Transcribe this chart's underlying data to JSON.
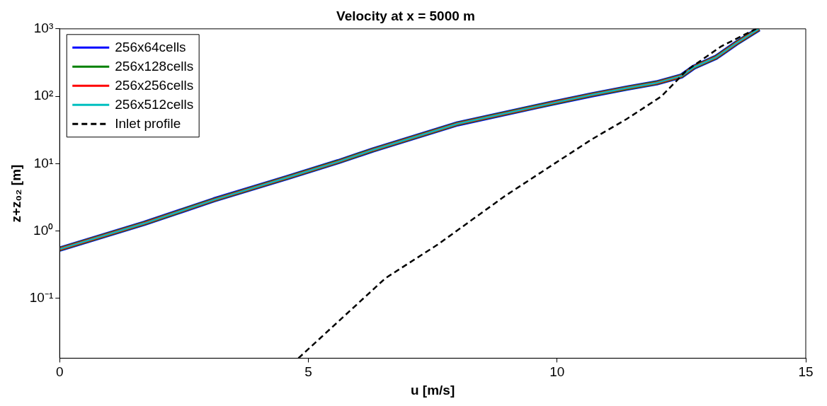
{
  "chart_data": {
    "type": "line",
    "title": "Velocity at x = 5000 m",
    "xlabel": "u [m/s]",
    "ylabel": "z+z₀₂ [m]",
    "xlim": [
      0,
      15
    ],
    "xticks": [
      0,
      5,
      10,
      15
    ],
    "ylim": [
      0.013,
      1000
    ],
    "yticks": [
      {
        "value": 0.1,
        "label": "10⁻¹"
      },
      {
        "value": 1,
        "label": "10⁰"
      },
      {
        "value": 10,
        "label": "10¹"
      },
      {
        "value": 100,
        "label": "10²"
      },
      {
        "value": 1000,
        "label": "10³"
      }
    ],
    "log": "y",
    "grid": false,
    "legend": "top left",
    "marker": "none",
    "series": [
      {
        "name": "256x64cells",
        "color": "#0000ff",
        "x": [
          0,
          1.7,
          3.1,
          4.6,
          5.6,
          6.3,
          8,
          9.9,
          10.7,
          11.4,
          12,
          12.5,
          12.75,
          13.2,
          13.6,
          14.06
        ],
        "values": [
          0.54,
          1.3,
          2.9,
          6.3,
          10.7,
          16,
          39,
          79,
          105,
          132,
          158,
          200,
          270,
          380,
          610,
          1000
        ]
      },
      {
        "name": "256x128cells",
        "color": "#008000",
        "x": [
          0,
          1.7,
          3.1,
          4.6,
          5.6,
          6.3,
          8,
          9.9,
          10.7,
          11.4,
          12,
          12.5,
          12.75,
          13.2,
          13.6,
          14.06
        ],
        "values": [
          0.54,
          1.3,
          2.9,
          6.3,
          10.7,
          16,
          39,
          79,
          105,
          132,
          158,
          200,
          270,
          380,
          610,
          1000
        ]
      },
      {
        "name": "256x256cells",
        "color": "#ff0000",
        "x": [
          0,
          1.7,
          3.1,
          4.6,
          5.6,
          6.3,
          8,
          9.9,
          10.7,
          11.4,
          12,
          12.5,
          12.75,
          13.2,
          13.6,
          14.06
        ],
        "values": [
          0.54,
          1.3,
          2.9,
          6.3,
          10.7,
          16,
          39,
          79,
          105,
          132,
          158,
          200,
          270,
          380,
          610,
          1000
        ]
      },
      {
        "name": "256x512cells",
        "color": "#00bfbf",
        "x": [
          0,
          1.7,
          3.1,
          4.6,
          5.6,
          6.3,
          8,
          9.9,
          10.7,
          11.4,
          12,
          12.5,
          12.75,
          13.2,
          13.6,
          14.06
        ],
        "values": [
          0.54,
          1.3,
          2.9,
          6.3,
          10.7,
          16,
          39,
          79,
          105,
          132,
          158,
          200,
          270,
          380,
          610,
          1000
        ]
      },
      {
        "name": "Inlet profile",
        "color": "#000000",
        "line_style": "dashed",
        "x": [
          4.8,
          6.55,
          7.6,
          8.95,
          9.9,
          10.7,
          11.4,
          12.1,
          12.6,
          13.3,
          14.0
        ],
        "values": [
          0.013,
          0.2,
          0.63,
          3.3,
          9.5,
          23,
          46,
          100,
          240,
          550,
          1000
        ]
      }
    ]
  }
}
